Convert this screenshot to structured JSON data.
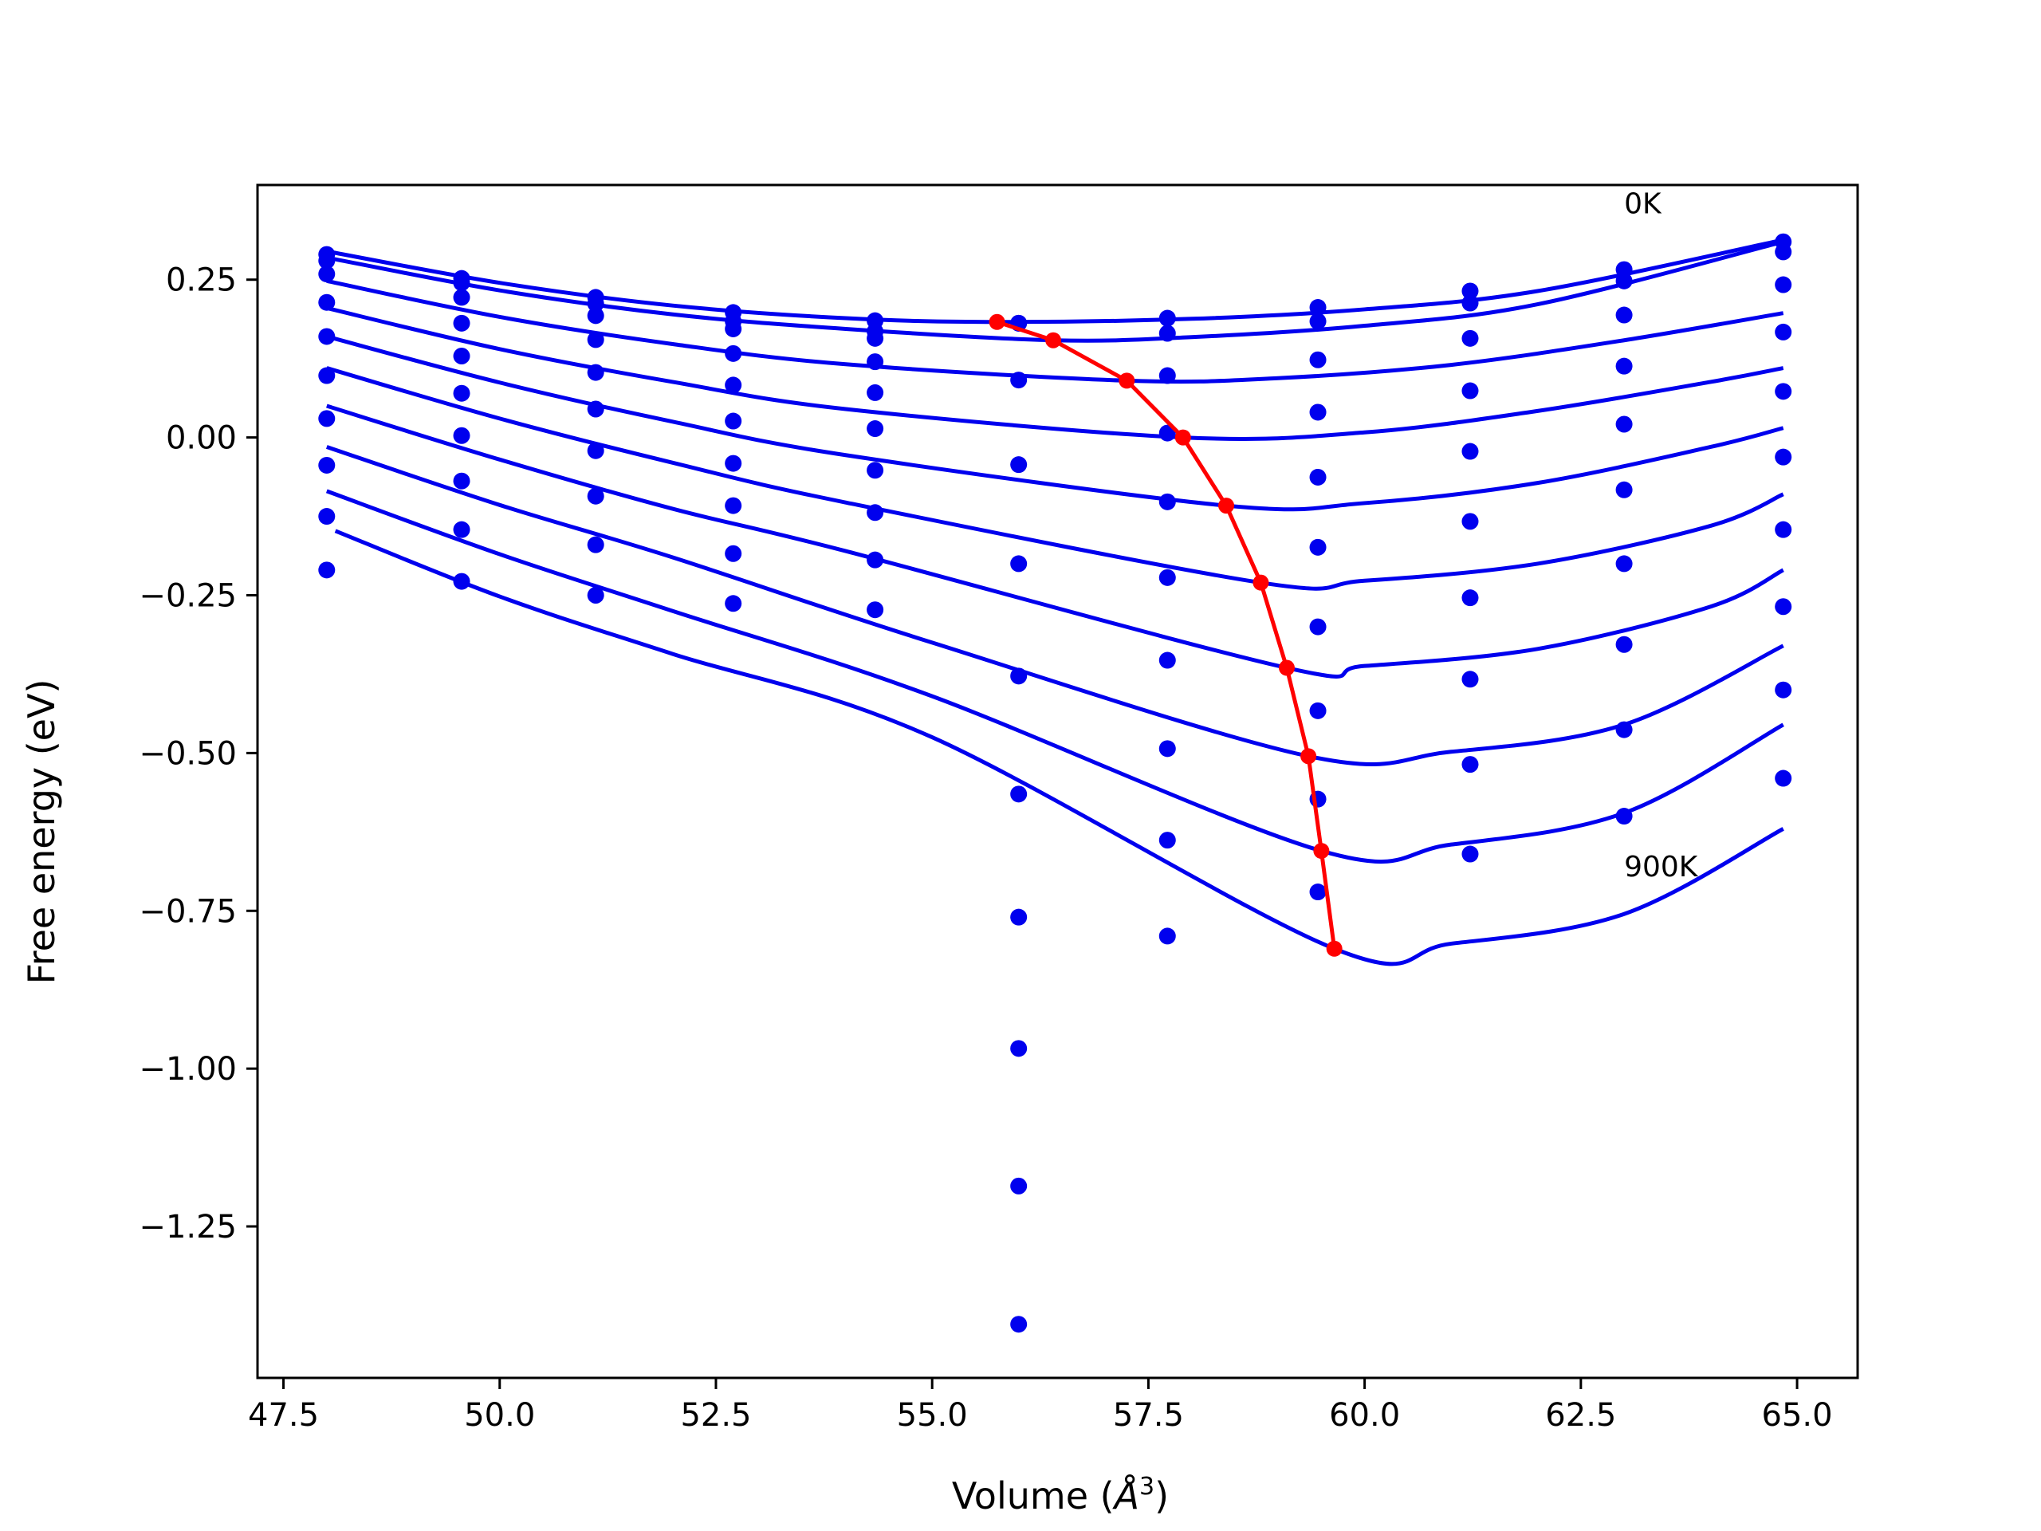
{
  "chart_data": {
    "type": "scatter",
    "title": "",
    "xlabel_prefix": "Volume (",
    "xlabel_symbol": "Å",
    "xlabel_exp": "3",
    "xlabel_suffix": ")",
    "ylabel": "Free energy (eV)",
    "xlim": [
      47.2,
      65.7
    ],
    "ylim": [
      -1.49,
      0.4
    ],
    "xticks": [
      47.5,
      50.0,
      52.5,
      55.0,
      57.5,
      60.0,
      62.5,
      65.0
    ],
    "xtick_labels": [
      "47.5",
      "50.0",
      "52.5",
      "55.0",
      "57.5",
      "60.0",
      "62.5",
      "65.0"
    ],
    "yticks": [
      0.25,
      0.0,
      -0.25,
      -0.5,
      -0.75,
      -1.0,
      -1.25
    ],
    "ytick_labels": [
      "0.25",
      "0.00",
      "−0.25",
      "−0.50",
      "−0.75",
      "−1.00",
      "−1.25"
    ],
    "grid": false,
    "colors": {
      "points": "#0000ee",
      "fits": "#0000ee",
      "minima": "#ff0000"
    },
    "annotations": [
      {
        "text": "0K",
        "x": 63.0,
        "y": 0.37
      },
      {
        "text": "900K",
        "x": 63.0,
        "y": -0.68
      }
    ],
    "x_volumes": [
      48.0,
      49.56,
      51.11,
      52.7,
      54.34,
      56.0,
      57.72,
      59.46,
      61.22,
      63.0,
      64.84
    ],
    "point_series": [
      {
        "values": [
          0.29,
          0.252,
          0.222,
          0.198,
          0.185,
          0.181,
          0.189,
          0.206,
          0.232,
          0.266,
          0.31
        ]
      },
      {
        "values": [
          0.28,
          0.245,
          0.212,
          0.184,
          0.168,
          0.181,
          0.165,
          0.184,
          0.213,
          0.248,
          0.294
        ]
      },
      {
        "values": [
          0.259,
          0.222,
          0.193,
          0.172,
          0.157,
          0.091,
          0.098,
          0.123,
          0.157,
          0.194,
          0.242
        ]
      },
      {
        "values": [
          0.214,
          0.181,
          0.155,
          0.133,
          0.12,
          -0.043,
          0.007,
          0.04,
          0.074,
          0.113,
          0.167
        ]
      },
      {
        "values": [
          0.16,
          0.129,
          0.103,
          0.083,
          0.071,
          -0.2,
          -0.102,
          -0.063,
          -0.022,
          0.021,
          0.073
        ]
      },
      {
        "values": [
          0.098,
          0.07,
          0.045,
          0.026,
          0.014,
          -0.378,
          -0.222,
          -0.174,
          -0.133,
          -0.083,
          -0.031
        ]
      },
      {
        "values": [
          0.03,
          0.003,
          -0.021,
          -0.041,
          -0.052,
          -0.565,
          -0.353,
          -0.3,
          -0.254,
          -0.2,
          -0.146
        ]
      },
      {
        "values": [
          -0.044,
          -0.069,
          -0.093,
          -0.108,
          -0.119,
          -0.76,
          -0.493,
          -0.433,
          -0.383,
          -0.328,
          -0.268
        ]
      },
      {
        "values": [
          -0.125,
          -0.146,
          -0.17,
          -0.184,
          -0.194,
          -0.968,
          -0.638,
          -0.573,
          -0.518,
          -0.463,
          -0.4
        ]
      },
      {
        "values": [
          -0.21,
          -0.228,
          -0.25,
          -0.263,
          -0.273,
          -1.186,
          -0.79,
          -0.72,
          -0.66,
          -0.6,
          -0.54
        ]
      },
      {
        "values": [
          null,
          null,
          null,
          null,
          null,
          -1.405,
          null,
          null,
          null,
          null,
          null
        ]
      }
    ],
    "fit_curves": [
      {
        "x": [
          48.0,
          50.0,
          52.0,
          54.0,
          55.75,
          58.0,
          60.0,
          62.0,
          64.84
        ],
        "y": [
          0.295,
          0.245,
          0.209,
          0.189,
          0.183,
          0.188,
          0.203,
          0.232,
          0.313
        ]
      },
      {
        "x": [
          48.0,
          50.0,
          52.0,
          54.0,
          56.4,
          58.0,
          60.0,
          62.0,
          64.84
        ],
        "y": [
          0.285,
          0.233,
          0.195,
          0.172,
          0.154,
          0.159,
          0.177,
          0.211,
          0.31
        ]
      },
      {
        "x": [
          48.0,
          50.0,
          52.0,
          54.0,
          57.25,
          59.0,
          61.0,
          63.0,
          64.84
        ],
        "y": [
          0.248,
          0.191,
          0.148,
          0.116,
          0.09,
          0.094,
          0.115,
          0.154,
          0.197
        ]
      },
      {
        "x": [
          48.0,
          50.0,
          52.0,
          54.0,
          57.9,
          60.0,
          62.0,
          64.0,
          64.84
        ],
        "y": [
          0.205,
          0.14,
          0.088,
          0.045,
          0.0,
          0.008,
          0.042,
          0.088,
          0.11
        ]
      },
      {
        "x": [
          48.0,
          50.0,
          52.0,
          54.0,
          58.4,
          60.0,
          62.0,
          64.0,
          64.84
        ],
        "y": [
          0.16,
          0.087,
          0.025,
          -0.028,
          -0.108,
          -0.104,
          -0.072,
          -0.015,
          0.015
        ]
      },
      {
        "x": [
          48.0,
          50.0,
          52.0,
          54.0,
          58.8,
          60.0,
          62.0,
          64.0,
          64.84
        ],
        "y": [
          0.11,
          0.03,
          -0.04,
          -0.103,
          -0.23,
          -0.227,
          -0.2,
          -0.14,
          -0.09
        ]
      },
      {
        "x": [
          48.0,
          50.0,
          52.0,
          54.0,
          59.1,
          60.0,
          62.0,
          64.0,
          64.84
        ],
        "y": [
          0.05,
          -0.035,
          -0.113,
          -0.18,
          -0.365,
          -0.362,
          -0.335,
          -0.268,
          -0.21
        ]
      },
      {
        "x": [
          48.0,
          50.0,
          52.0,
          55.0,
          59.35,
          61.0,
          63.0,
          64.84
        ],
        "y": [
          -0.015,
          -0.107,
          -0.19,
          -0.325,
          -0.505,
          -0.498,
          -0.455,
          -0.33
        ]
      },
      {
        "x": [
          48.0,
          50.0,
          52.0,
          55.0,
          59.5,
          61.0,
          63.0,
          64.84
        ],
        "y": [
          -0.085,
          -0.185,
          -0.275,
          -0.41,
          -0.655,
          -0.645,
          -0.595,
          -0.455
        ]
      },
      {
        "x": [
          48.1,
          50.0,
          52.0,
          55.0,
          59.65,
          61.0,
          63.0,
          64.84
        ],
        "y": [
          -0.148,
          -0.252,
          -0.343,
          -0.475,
          -0.81,
          -0.802,
          -0.755,
          -0.62
        ]
      }
    ],
    "minima_path": {
      "x": [
        55.75,
        56.4,
        57.25,
        57.9,
        58.4,
        58.8,
        59.1,
        59.35,
        59.5,
        59.65
      ],
      "y": [
        0.183,
        0.154,
        0.09,
        0.0,
        -0.108,
        -0.23,
        -0.365,
        -0.505,
        -0.655,
        -0.81
      ]
    }
  }
}
